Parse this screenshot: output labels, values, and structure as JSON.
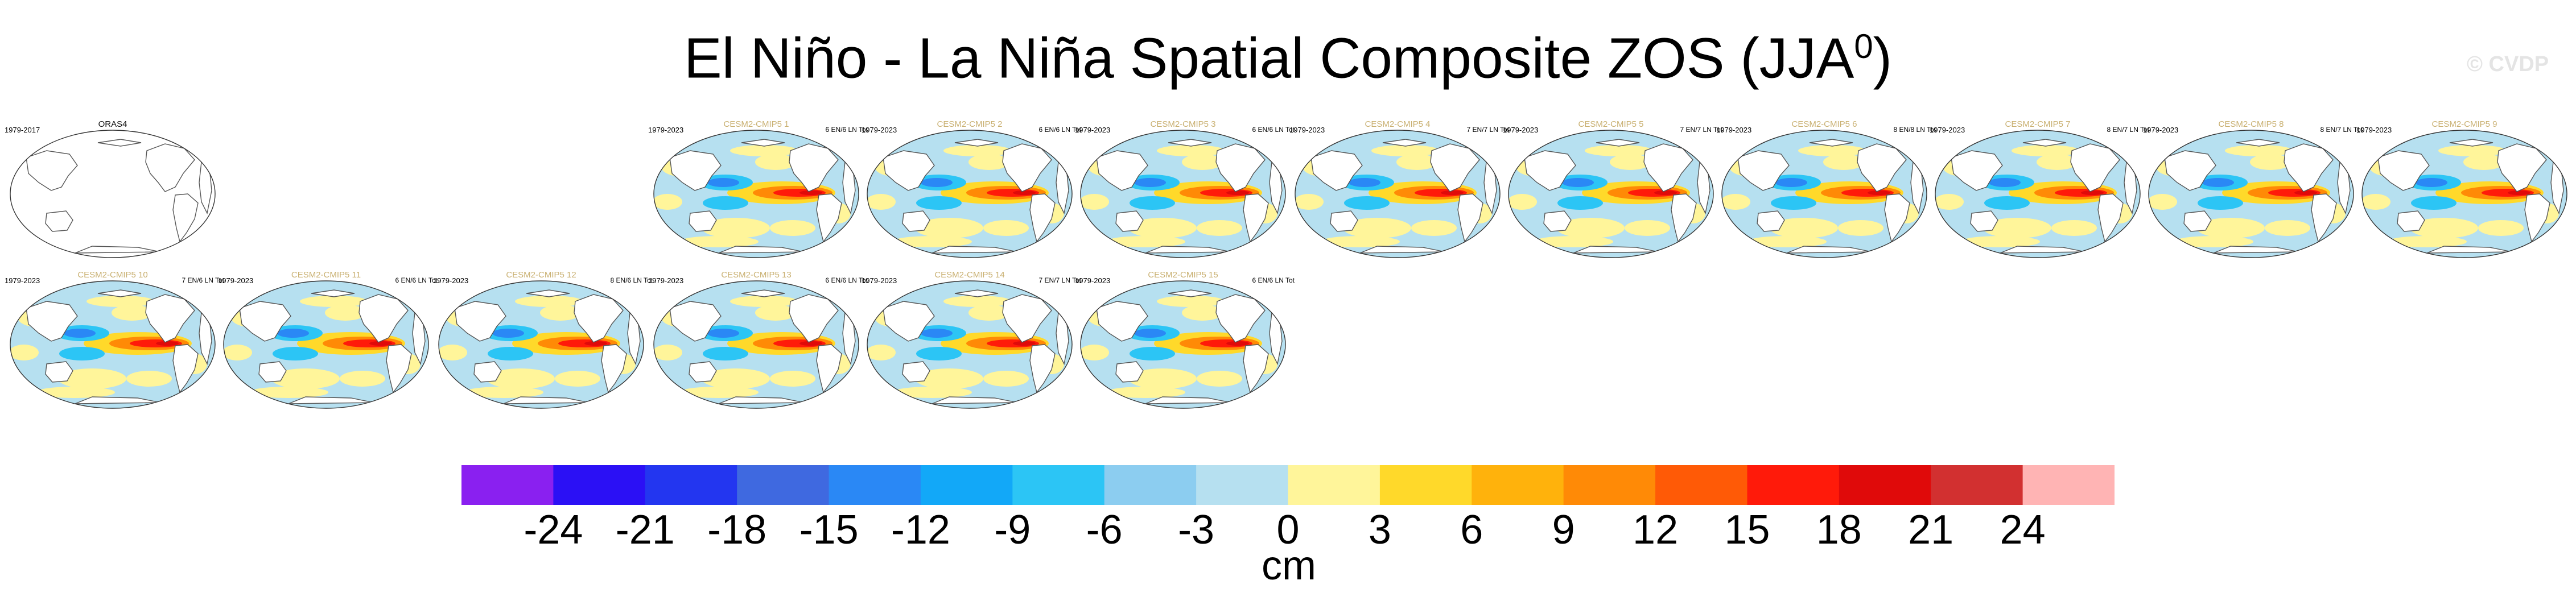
{
  "title_main": "El Niño - La Niña Spatial Composite ZOS (JJA",
  "title_sup": "0",
  "title_end": ")",
  "watermark": "© CVDP",
  "units": "cm",
  "colors": {
    "levels": [
      "#8a20f0",
      "#2b10f5",
      "#2336f0",
      "#3f69e0",
      "#2a88f5",
      "#12a8f8",
      "#2cc5f5",
      "#8ccdf0",
      "#b6e0f0",
      "#fff59a",
      "#ffd92a",
      "#ffb20c",
      "#ff8a06",
      "#ff5a06",
      "#ff1a0a",
      "#e00a0a",
      "#d23030",
      "#ffb4b4"
    ],
    "ocean_neutral": "#b6e0f0",
    "ocean_warm": "#fff59a",
    "land": "#ffffff",
    "coast": "#555555",
    "model_title": "#c9b071"
  },
  "chart_data": {
    "type": "heatmap",
    "title": "El Niño - La Niña Spatial Composite ZOS (JJA0)",
    "variable": "ZOS",
    "season": "JJA",
    "units": "cm",
    "colorbar": {
      "ticks": [
        -24,
        -21,
        -18,
        -15,
        -12,
        -9,
        -6,
        -3,
        0,
        3,
        6,
        9,
        12,
        15,
        18,
        21,
        24
      ],
      "tick_labels": [
        "-24",
        "-21",
        "-18",
        "-15",
        "-12",
        "-9",
        "-6",
        "-3",
        "0",
        "3",
        "6",
        "9",
        "12",
        "15",
        "18",
        "21",
        "24"
      ],
      "n_colors": 18
    },
    "panels": [
      {
        "title": "ORAS4",
        "period": "1979-2017",
        "counts": "",
        "kind": "obs"
      },
      {
        "title": "CESM2-CMIP5 1",
        "period": "1979-2023",
        "counts": "6 EN/6 LN Tot",
        "kind": "model"
      },
      {
        "title": "CESM2-CMIP5 2",
        "period": "1979-2023",
        "counts": "6 EN/6 LN Tot",
        "kind": "model"
      },
      {
        "title": "CESM2-CMIP5 3",
        "period": "1979-2023",
        "counts": "6 EN/6 LN Tot",
        "kind": "model"
      },
      {
        "title": "CESM2-CMIP5 4",
        "period": "1979-2023",
        "counts": "7 EN/7 LN Tot",
        "kind": "model"
      },
      {
        "title": "CESM2-CMIP5 5",
        "period": "1979-2023",
        "counts": "7 EN/7 LN Tot",
        "kind": "model"
      },
      {
        "title": "CESM2-CMIP5 6",
        "period": "1979-2023",
        "counts": "8 EN/8 LN Tot",
        "kind": "model"
      },
      {
        "title": "CESM2-CMIP5 7",
        "period": "1979-2023",
        "counts": "8 EN/7 LN Tot",
        "kind": "model"
      },
      {
        "title": "CESM2-CMIP5 8",
        "period": "1979-2023",
        "counts": "8 EN/7 LN Tot",
        "kind": "model"
      },
      {
        "title": "CESM2-CMIP5 9",
        "period": "1979-2023",
        "counts": "",
        "kind": "model"
      },
      {
        "title": "CESM2-CMIP5 10",
        "period": "1979-2023",
        "counts": "7 EN/6 LN Tot",
        "kind": "model"
      },
      {
        "title": "CESM2-CMIP5 11",
        "period": "1979-2023",
        "counts": "6 EN/6 LN Tot",
        "kind": "model"
      },
      {
        "title": "CESM2-CMIP5 12",
        "period": "1979-2023",
        "counts": "8 EN/6 LN Tot",
        "kind": "model"
      },
      {
        "title": "CESM2-CMIP5 13",
        "period": "1979-2023",
        "counts": "6 EN/6 LN Tot",
        "kind": "model"
      },
      {
        "title": "CESM2-CMIP5 14",
        "period": "1979-2023",
        "counts": "7 EN/7 LN Tot",
        "kind": "model"
      },
      {
        "title": "CESM2-CMIP5 15",
        "period": "1979-2023",
        "counts": "6 EN/6 LN Tot",
        "kind": "model"
      }
    ]
  }
}
